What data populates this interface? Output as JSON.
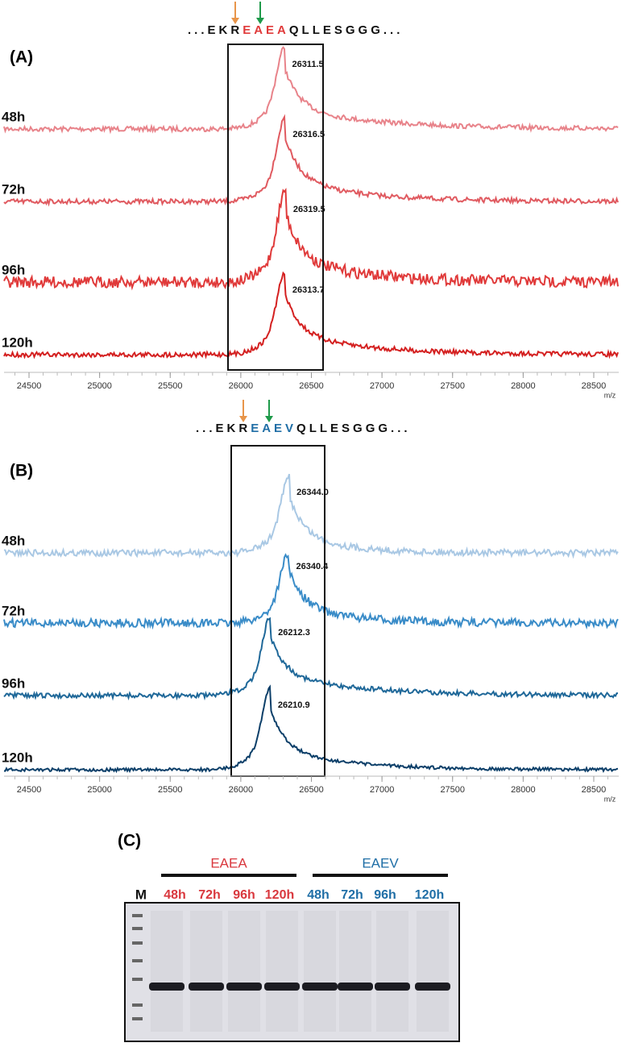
{
  "chart_data": [
    {
      "type": "spectrum",
      "panel_label": "(A)",
      "sequence": [
        {
          "text": "...EKR",
          "color": "#111111"
        },
        {
          "text": "EAEA",
          "color": "#e03a3a"
        },
        {
          "text": "QLLESGGG...",
          "color": "#111111"
        }
      ],
      "x_label": "m/z",
      "xlim": [
        24323,
        28677
      ],
      "xticks": [
        24500,
        25000,
        25500,
        26000,
        26500,
        27000,
        27500,
        28000,
        28500
      ],
      "series": [
        {
          "name": "48h",
          "color": "#e8838a",
          "values": [
            26311.5
          ],
          "value_labels": [
            "26311.5"
          ]
        },
        {
          "name": "72h",
          "color": "#e05a60",
          "values": [
            26316.5
          ],
          "value_labels": [
            "26316.5"
          ]
        },
        {
          "name": "96h",
          "color": "#e03a3a",
          "values": [
            26319.5
          ],
          "value_labels": [
            "26319.5"
          ]
        },
        {
          "name": "120h",
          "color": "#d42020",
          "values": [
            26313.7
          ],
          "value_labels": [
            "26313.7"
          ]
        }
      ]
    },
    {
      "type": "spectrum",
      "panel_label": "(B)",
      "sequence": [
        {
          "text": "...EKR",
          "color": "#111111"
        },
        {
          "text": "EAEV",
          "color": "#1f6ea6"
        },
        {
          "text": "QLLESGGG...",
          "color": "#111111"
        }
      ],
      "x_label": "m/z",
      "xlim": [
        24323,
        28677
      ],
      "xticks": [
        24500,
        25000,
        25500,
        26000,
        26500,
        27000,
        27500,
        28000,
        28500
      ],
      "series": [
        {
          "name": "48h",
          "color": "#a9c8e4",
          "values": [
            26344.0
          ],
          "value_labels": [
            "26344.0"
          ]
        },
        {
          "name": "72h",
          "color": "#3a8cc8",
          "values": [
            26340.4
          ],
          "value_labels": [
            "26340.4"
          ]
        },
        {
          "name": "96h",
          "color": "#1f6899",
          "values": [
            26212.3
          ],
          "value_labels": [
            "26212.3"
          ]
        },
        {
          "name": "120h",
          "color": "#0c3f69",
          "values": [
            26210.9
          ],
          "value_labels": [
            "26210.9"
          ]
        }
      ]
    },
    {
      "type": "gel",
      "panel_label": "(C)",
      "marker": "M",
      "groups": [
        {
          "name": "EAEA",
          "color": "#d9383e",
          "lanes": [
            "48h",
            "72h",
            "96h",
            "120h"
          ]
        },
        {
          "name": "EAEV",
          "color": "#1f6ea6",
          "lanes": [
            "48h",
            "72h",
            "96h",
            "120h"
          ]
        }
      ]
    }
  ]
}
